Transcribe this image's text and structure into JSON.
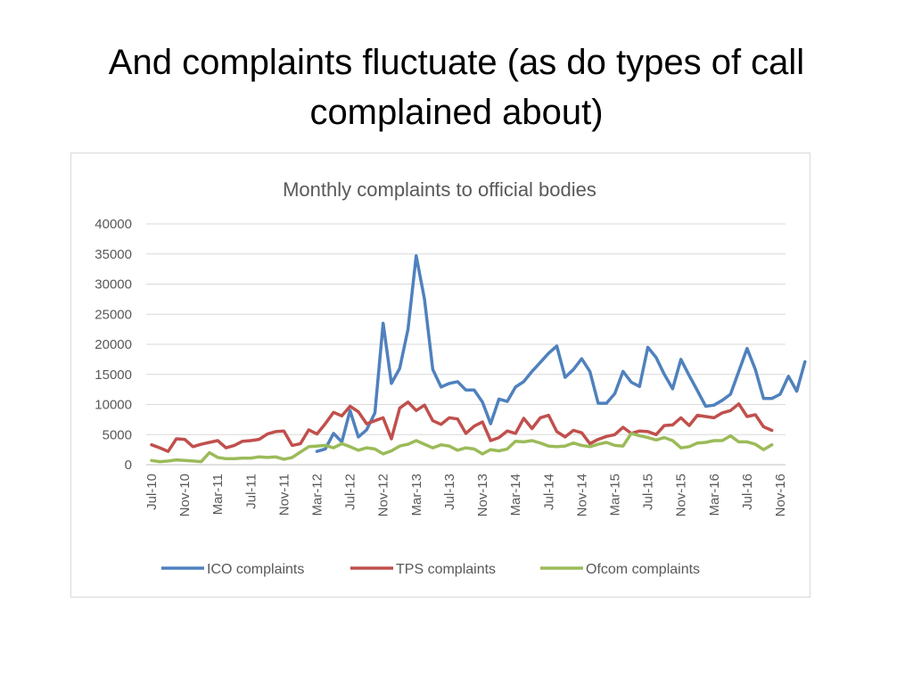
{
  "slide": {
    "title": "And complaints fluctuate (as do types of call complained about)"
  },
  "chart_data": {
    "type": "line",
    "title": "Monthly complaints to official bodies",
    "xlabel": "",
    "ylabel": "",
    "ylim": [
      0,
      40000
    ],
    "y_ticks": [
      "0",
      "5000",
      "10000",
      "15000",
      "20000",
      "25000",
      "30000",
      "35000",
      "40000"
    ],
    "x_start": "Jul-10",
    "x_ticks": [
      "Jul-10",
      "Nov-10",
      "Mar-11",
      "Jul-11",
      "Nov-11",
      "Mar-12",
      "Jul-12",
      "Nov-12",
      "Mar-13",
      "Jul-13",
      "Nov-13",
      "Mar-14",
      "Jul-14",
      "Nov-14",
      "Mar-15",
      "Jul-15",
      "Nov-15",
      "Mar-16",
      "Jul-16",
      "Nov-16"
    ],
    "grid": true,
    "legend_position": "bottom",
    "series": [
      {
        "name": "ICO complaints",
        "color": "#4f81bd",
        "start": "Mar-12",
        "values": [
          2200,
          2600,
          5200,
          3800,
          9000,
          4600,
          5800,
          8600,
          23500,
          13500,
          16000,
          22500,
          34700,
          27500,
          15800,
          12900,
          13500,
          13800,
          12400,
          12400,
          10400,
          6800,
          10900,
          10500,
          12900,
          13800,
          15500,
          17000,
          18500,
          19700,
          14500,
          15800,
          17600,
          15500,
          10200,
          10200,
          11800,
          15500,
          13700,
          13000,
          19500,
          17800,
          15000,
          12600,
          17500,
          14800,
          12300,
          9700,
          9900,
          10700,
          11700,
          15500,
          19300,
          15800,
          11000,
          11000,
          11700,
          14700,
          12200,
          17100
        ]
      },
      {
        "name": "TPS complaints",
        "color": "#c0504d",
        "start": "Jul-10",
        "values": [
          3300,
          2800,
          2200,
          4300,
          4200,
          3000,
          3400,
          3700,
          4000,
          2800,
          3200,
          3900,
          4000,
          4200,
          5100,
          5500,
          5600,
          3200,
          3500,
          5800,
          5100,
          6800,
          8700,
          8100,
          9700,
          8800,
          6800,
          7300,
          7800,
          4300,
          9400,
          10400,
          9000,
          9900,
          7300,
          6700,
          7800,
          7600,
          5200,
          6400,
          7100,
          4000,
          4500,
          5600,
          5200,
          7700,
          6000,
          7800,
          8200,
          5500,
          4600,
          5700,
          5300,
          3500,
          4200,
          4700,
          5000,
          6200,
          5200,
          5600,
          5500,
          5000,
          6500,
          6600,
          7800,
          6500,
          8200,
          8000,
          7800,
          8600,
          9000,
          10100,
          8000,
          8300,
          6300,
          5700
        ]
      },
      {
        "name": "Ofcom complaints",
        "color": "#9bbb59",
        "start": "Jul-10",
        "values": [
          700,
          500,
          600,
          800,
          700,
          600,
          500,
          2000,
          1200,
          1000,
          1000,
          1100,
          1100,
          1300,
          1200,
          1300,
          900,
          1200,
          2100,
          3000,
          3100,
          3200,
          2800,
          3500,
          3000,
          2400,
          2800,
          2600,
          1800,
          2300,
          3100,
          3400,
          4000,
          3400,
          2800,
          3300,
          3100,
          2400,
          2800,
          2600,
          1800,
          2500,
          2300,
          2600,
          3900,
          3800,
          4000,
          3600,
          3100,
          3000,
          3100,
          3600,
          3200,
          3000,
          3400,
          3700,
          3200,
          3100,
          5200,
          4800,
          4500,
          4100,
          4500,
          4000,
          2800,
          3000,
          3600,
          3700,
          4000,
          4000,
          4800,
          3800,
          3800,
          3400,
          2500,
          3300
        ]
      }
    ]
  }
}
